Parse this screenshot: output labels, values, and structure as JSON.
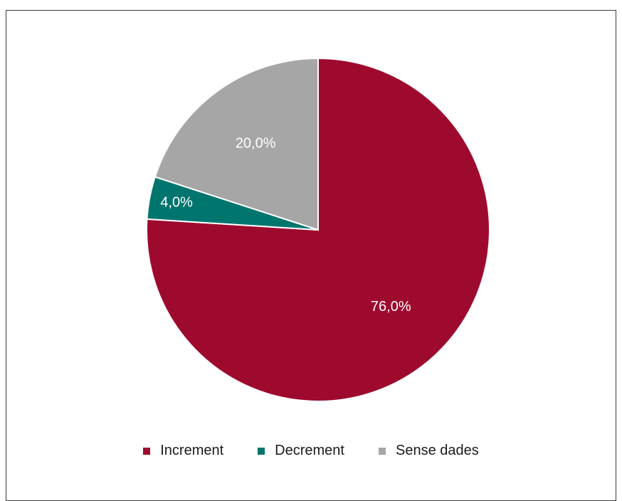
{
  "chart_data": {
    "type": "pie",
    "title": "",
    "slices": [
      {
        "label": "Increment",
        "value": 76.0,
        "data_label": "76,0%",
        "color": "#9e0a2e"
      },
      {
        "label": "Decrement",
        "value": 4.0,
        "data_label": "4,0%",
        "color": "#00756e"
      },
      {
        "label": "Sense dades",
        "value": 20.0,
        "data_label": "20,0%",
        "color": "#a6a6a6"
      }
    ],
    "start_angle": "12 o'clock",
    "direction": "clockwise",
    "legend": "bottom",
    "data_label_color": "#ffffff"
  }
}
